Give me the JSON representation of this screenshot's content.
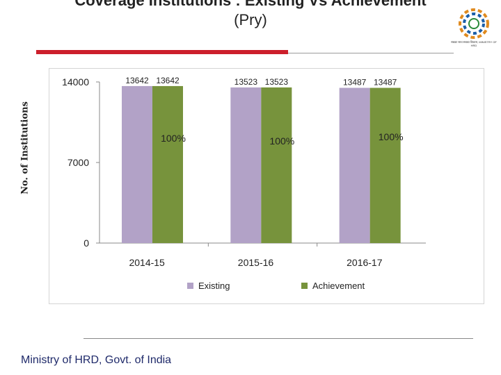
{
  "slide": {
    "title_line1": "Coverage Institutions : Existing Vs Achievement",
    "title_line2": "(Pry)",
    "footer": "Ministry of HRD, Govt. of India",
    "logo_text": "सबका साथ सबका विकास, MINISTRY OF HRD"
  },
  "chart_data": {
    "type": "bar",
    "ylabel": "No. of Institutions",
    "ylim": [
      0,
      14000
    ],
    "yticks": [
      "0",
      "7000",
      "14000"
    ],
    "categories": [
      "2014-15",
      "2015-16",
      "2016-17"
    ],
    "series": [
      {
        "name": "Existing",
        "color": "#b2a2c7",
        "values": [
          13642,
          13523,
          13487
        ]
      },
      {
        "name": "Achievement",
        "color": "#77933c",
        "values": [
          13642,
          13523,
          13487
        ]
      }
    ],
    "annotations": [
      "100%",
      "100%",
      "100%"
    ],
    "legend_position": "bottom",
    "grid": false
  }
}
